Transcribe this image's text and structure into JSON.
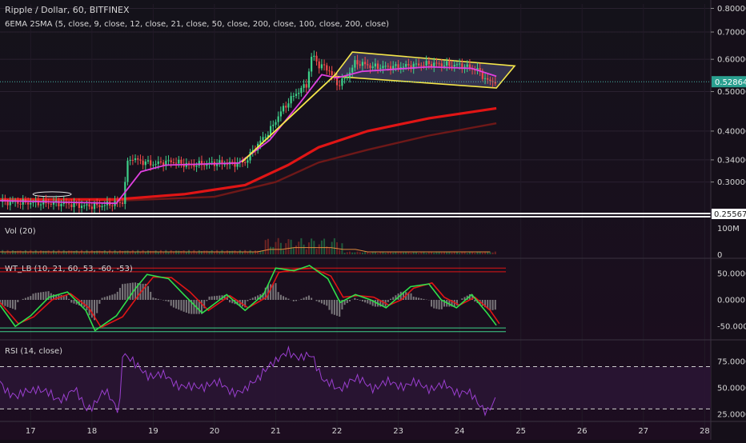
{
  "chart_data": [
    {
      "type": "candlestick",
      "title": "Ripple / Dollar, 60, BITFINEX",
      "indicator_label": "6EMA 2SMA (5, close, 9, close, 12, close, 21, close, 50, close, 200, close, 100, close, 200, close)",
      "y_scale": "log",
      "ylim": [
        0.25,
        0.82
      ],
      "y_ticks": [
        "0.80000",
        "0.70000",
        "0.60000",
        "0.50000",
        "0.40000",
        "0.34000",
        "0.30000"
      ],
      "last_price": "0.52864",
      "left_price_label": "0.25567",
      "x_ticks": [
        "17",
        "18",
        "19",
        "20",
        "21",
        "22",
        "23",
        "24",
        "25",
        "26",
        "27",
        "28"
      ],
      "x_range_days": [
        16.5,
        28.1
      ],
      "close_path": [
        [
          16.5,
          0.268
        ],
        [
          17.0,
          0.267
        ],
        [
          17.5,
          0.266
        ],
        [
          17.9,
          0.262
        ],
        [
          18.1,
          0.262
        ],
        [
          18.5,
          0.268
        ],
        [
          18.6,
          0.345
        ],
        [
          18.8,
          0.337
        ],
        [
          19.0,
          0.332
        ],
        [
          19.3,
          0.337
        ],
        [
          19.6,
          0.33
        ],
        [
          20.0,
          0.334
        ],
        [
          20.3,
          0.333
        ],
        [
          20.5,
          0.336
        ],
        [
          20.7,
          0.37
        ],
        [
          20.9,
          0.4
        ],
        [
          21.1,
          0.45
        ],
        [
          21.3,
          0.49
        ],
        [
          21.5,
          0.52
        ],
        [
          21.6,
          0.62
        ],
        [
          21.7,
          0.58
        ],
        [
          21.85,
          0.57
        ],
        [
          22.0,
          0.52
        ],
        [
          22.15,
          0.54
        ],
        [
          22.3,
          0.59
        ],
        [
          22.6,
          0.575
        ],
        [
          23.0,
          0.575
        ],
        [
          23.5,
          0.585
        ],
        [
          24.0,
          0.58
        ],
        [
          24.3,
          0.565
        ],
        [
          24.45,
          0.53
        ],
        [
          24.6,
          0.53
        ]
      ],
      "ema_fast": [
        [
          16.5,
          0.27
        ],
        [
          18.4,
          0.266
        ],
        [
          18.8,
          0.318
        ],
        [
          19.2,
          0.33
        ],
        [
          20.4,
          0.334
        ],
        [
          20.9,
          0.38
        ],
        [
          21.4,
          0.47
        ],
        [
          21.75,
          0.55
        ],
        [
          22.0,
          0.54
        ],
        [
          22.4,
          0.56
        ],
        [
          23.5,
          0.575
        ],
        [
          24.2,
          0.57
        ],
        [
          24.6,
          0.545
        ]
      ],
      "sma_slow": [
        [
          16.5,
          0.272
        ],
        [
          18.4,
          0.272
        ],
        [
          19.5,
          0.28
        ],
        [
          20.5,
          0.295
        ],
        [
          21.2,
          0.33
        ],
        [
          21.7,
          0.365
        ],
        [
          22.5,
          0.4
        ],
        [
          23.5,
          0.43
        ],
        [
          24.6,
          0.455
        ]
      ],
      "sma_slow_2": [
        [
          16.5,
          0.272
        ],
        [
          18.4,
          0.27
        ],
        [
          20.0,
          0.276
        ],
        [
          21.0,
          0.3
        ],
        [
          21.7,
          0.335
        ],
        [
          22.5,
          0.36
        ],
        [
          23.5,
          0.39
        ],
        [
          24.6,
          0.418
        ]
      ],
      "trend_line": [
        [
          20.45,
          0.336
        ],
        [
          22.0,
          0.555
        ]
      ],
      "channel": [
        [
          22.25,
          0.625
        ],
        [
          24.9,
          0.578
        ],
        [
          24.6,
          0.51
        ],
        [
          21.95,
          0.545
        ]
      ],
      "colors": {
        "up": "#3ed18a",
        "down": "#ef4a4a",
        "ema": "#e040e0",
        "sma": "#e01515",
        "sma2": "#6e1818",
        "trend": "#f5e64a",
        "channel_fill": "#52507a"
      }
    },
    {
      "type": "bar",
      "title": "Vol (20)",
      "y_ticks": [
        "100M",
        "0"
      ]
    },
    {
      "type": "line",
      "title": "WT_LB (10, 21, 60, 53, -60, -53)",
      "y_ticks": [
        "50.0000",
        "0.0000",
        "-50.0000"
      ],
      "ylim": [
        -68,
        68
      ],
      "levels": [
        60,
        53,
        -53,
        -60
      ],
      "wt1": [
        [
          16.5,
          -10
        ],
        [
          16.75,
          -50
        ],
        [
          17.0,
          -30
        ],
        [
          17.3,
          5
        ],
        [
          17.6,
          15
        ],
        [
          17.9,
          -20
        ],
        [
          18.05,
          -58
        ],
        [
          18.4,
          -30
        ],
        [
          18.7,
          20
        ],
        [
          18.9,
          48
        ],
        [
          19.25,
          40
        ],
        [
          19.5,
          10
        ],
        [
          19.8,
          -25
        ],
        [
          20.2,
          10
        ],
        [
          20.5,
          -20
        ],
        [
          20.8,
          10
        ],
        [
          21.0,
          60
        ],
        [
          21.3,
          55
        ],
        [
          21.55,
          65
        ],
        [
          21.85,
          40
        ],
        [
          22.05,
          -5
        ],
        [
          22.3,
          10
        ],
        [
          22.55,
          0
        ],
        [
          22.8,
          -15
        ],
        [
          23.0,
          5
        ],
        [
          23.2,
          25
        ],
        [
          23.5,
          30
        ],
        [
          23.7,
          0
        ],
        [
          23.95,
          -15
        ],
        [
          24.2,
          10
        ],
        [
          24.45,
          -25
        ],
        [
          24.6,
          -48
        ]
      ],
      "wt2": [
        [
          16.5,
          -5
        ],
        [
          16.8,
          -45
        ],
        [
          17.05,
          -32
        ],
        [
          17.35,
          0
        ],
        [
          17.65,
          12
        ],
        [
          17.95,
          -15
        ],
        [
          18.15,
          -52
        ],
        [
          18.5,
          -32
        ],
        [
          18.8,
          15
        ],
        [
          19.0,
          43
        ],
        [
          19.3,
          42
        ],
        [
          19.6,
          15
        ],
        [
          19.9,
          -20
        ],
        [
          20.25,
          8
        ],
        [
          20.55,
          -15
        ],
        [
          20.85,
          5
        ],
        [
          21.05,
          52
        ],
        [
          21.35,
          58
        ],
        [
          21.6,
          60
        ],
        [
          21.9,
          45
        ],
        [
          22.1,
          5
        ],
        [
          22.35,
          8
        ],
        [
          22.6,
          5
        ],
        [
          22.85,
          -10
        ],
        [
          23.05,
          0
        ],
        [
          23.25,
          22
        ],
        [
          23.55,
          32
        ],
        [
          23.75,
          5
        ],
        [
          24.0,
          -10
        ],
        [
          24.25,
          5
        ],
        [
          24.5,
          -20
        ],
        [
          24.65,
          -45
        ]
      ]
    },
    {
      "type": "line",
      "title": "RSI (14, close)",
      "y_ticks": [
        "75.0000",
        "50.0000",
        "25.0000"
      ],
      "ylim": [
        22,
        90
      ],
      "levels": [
        70,
        30
      ],
      "rsi": [
        [
          16.5,
          55
        ],
        [
          16.8,
          40
        ],
        [
          17.1,
          52
        ],
        [
          17.4,
          38
        ],
        [
          17.7,
          48
        ],
        [
          17.9,
          30
        ],
        [
          18.2,
          45
        ],
        [
          18.45,
          30
        ],
        [
          18.5,
          85
        ],
        [
          18.7,
          70
        ],
        [
          19.0,
          62
        ],
        [
          19.3,
          58
        ],
        [
          19.6,
          48
        ],
        [
          19.9,
          55
        ],
        [
          20.2,
          50
        ],
        [
          20.5,
          45
        ],
        [
          20.8,
          68
        ],
        [
          21.0,
          72
        ],
        [
          21.2,
          88
        ],
        [
          21.4,
          75
        ],
        [
          21.6,
          82
        ],
        [
          21.8,
          55
        ],
        [
          22.0,
          48
        ],
        [
          22.2,
          58
        ],
        [
          22.6,
          52
        ],
        [
          23.0,
          54
        ],
        [
          23.4,
          52
        ],
        [
          23.8,
          50
        ],
        [
          24.1,
          46
        ],
        [
          24.3,
          35
        ],
        [
          24.45,
          30
        ],
        [
          24.6,
          38
        ]
      ]
    }
  ]
}
